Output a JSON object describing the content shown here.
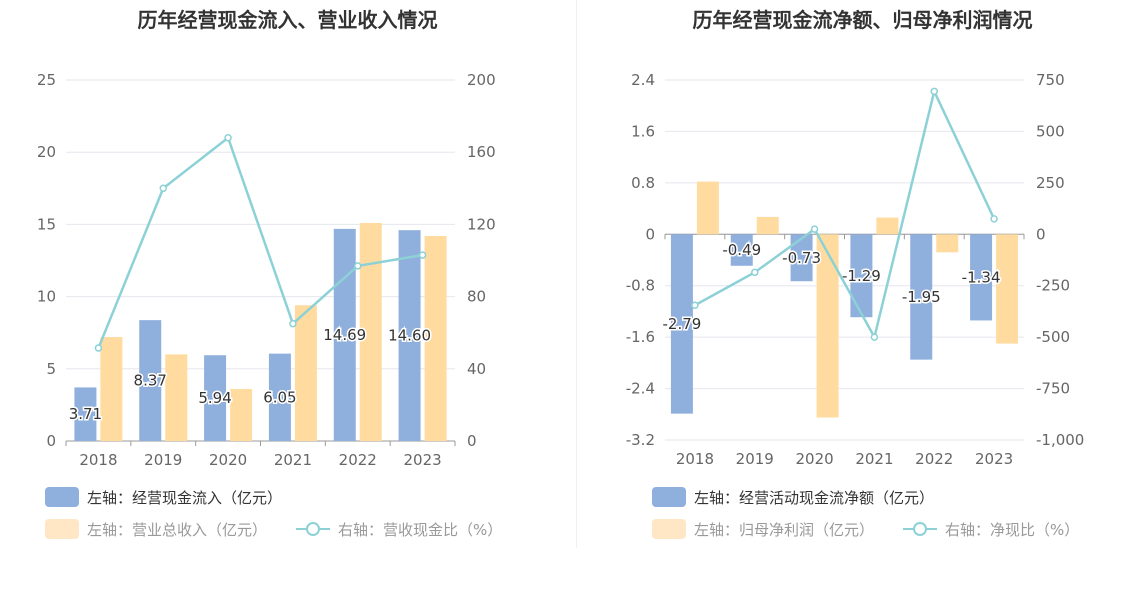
{
  "colors": {
    "bar_primary": "#8fafdd",
    "bar_secondary": "#ffdba0",
    "line": "#8cd1d6",
    "legend_primary_text": "#333333",
    "legend_muted_text": "#999999",
    "grid": "#e6e6ee"
  },
  "legend_icons": {
    "bar": "bar-swatch",
    "line": "line-circle-marker"
  },
  "chart_data": [
    {
      "type": "bar",
      "title": "历年经营现金流入、营业收入情况",
      "categories": [
        "2018",
        "2019",
        "2020",
        "2021",
        "2022",
        "2023"
      ],
      "y_left": {
        "ticks": [
          "0",
          "5",
          "10",
          "15",
          "20",
          "25"
        ],
        "range": [
          0,
          25
        ]
      },
      "y_right": {
        "ticks": [
          "0",
          "40",
          "80",
          "120",
          "160",
          "200"
        ],
        "range": [
          0,
          200
        ]
      },
      "series": [
        {
          "name": "左轴：经营现金流入（亿元）",
          "kind": "bar",
          "axis": "left",
          "color": "#8fafdd",
          "values": [
            3.71,
            8.37,
            5.94,
            6.05,
            14.69,
            14.6
          ],
          "labels": [
            "3.71",
            "8.37",
            "5.94",
            "6.05",
            "14.69",
            "14.60"
          ]
        },
        {
          "name": "左轴：营业总收入（亿元）",
          "kind": "bar",
          "axis": "left",
          "color": "#ffdba0",
          "values": [
            7.2,
            6.0,
            3.6,
            9.4,
            15.1,
            14.2
          ]
        },
        {
          "name": "右轴：营收现金比（%）",
          "kind": "line",
          "axis": "right",
          "color": "#8cd1d6",
          "values": [
            51.5,
            140.0,
            168.0,
            65.0,
            97.0,
            103.0
          ]
        }
      ],
      "legend": [
        "左轴：经营现金流入（亿元）",
        "左轴：营业总收入（亿元）",
        "右轴：营收现金比（%）"
      ],
      "grid": true,
      "legend_position": "bottom"
    },
    {
      "type": "bar",
      "title": "历年经营现金流净额、归母净利润情况",
      "categories": [
        "2018",
        "2019",
        "2020",
        "2021",
        "2022",
        "2023"
      ],
      "y_left": {
        "ticks": [
          "-3.2",
          "-2.4",
          "-1.6",
          "-0.8",
          "0",
          "0.8",
          "1.6",
          "2.4"
        ],
        "range": [
          -3.2,
          2.4
        ]
      },
      "y_right": {
        "ticks": [
          "-1,000",
          "-750",
          "-500",
          "-250",
          "0",
          "250",
          "500",
          "750"
        ],
        "range": [
          -1000,
          750
        ]
      },
      "series": [
        {
          "name": "左轴：经营活动现金流净额（亿元）",
          "kind": "bar",
          "axis": "left",
          "color": "#8fafdd",
          "values": [
            -2.79,
            -0.49,
            -0.73,
            -1.29,
            -1.95,
            -1.34
          ],
          "labels": [
            "-2.79",
            "-0.49",
            "-0.73",
            "-1.29",
            "-1.95",
            "-1.34"
          ]
        },
        {
          "name": "左轴：归母净利润（亿元）",
          "kind": "bar",
          "axis": "left",
          "color": "#ffdba0",
          "values": [
            0.82,
            0.27,
            -2.85,
            0.26,
            -0.28,
            -1.7
          ]
        },
        {
          "name": "右轴：净现比（%）",
          "kind": "line",
          "axis": "right",
          "color": "#8cd1d6",
          "values": [
            -345,
            -185,
            25,
            -500,
            695,
            75
          ]
        }
      ],
      "legend": [
        "左轴：经营活动现金流净额（亿元）",
        "左轴：归母净利润（亿元）",
        "右轴：净现比（%）"
      ],
      "grid": true,
      "legend_position": "bottom"
    }
  ]
}
